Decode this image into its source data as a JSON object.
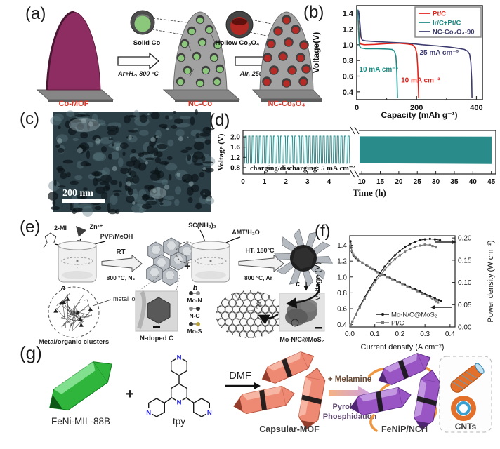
{
  "panels": {
    "a": {
      "label": "(a)",
      "stages": [
        "Co-MOF",
        "NC-Co",
        "NC-Co₃O₄"
      ],
      "arrows": [
        "Ar+H₂, 800 °C",
        "Air, 250 °C"
      ],
      "insets": [
        "Solid Co",
        "Hollow Co₃O₄"
      ]
    },
    "b": {
      "label": "(b)"
    },
    "c": {
      "label": "(c)",
      "scale_bar": "200 nm"
    },
    "d": {
      "label": "(d)"
    },
    "e": {
      "label": "(e)",
      "reagent_mi": "2-MI",
      "reagent_zn": "Zn²⁺",
      "reagent_pvp": "PVP/MeOH",
      "beaker_a": "a",
      "step1_top": "RT",
      "step1_bottom": "800 °C, N₂",
      "plus": "+",
      "reagent_thiourea": "SC(NH₂)₂",
      "reagent_amt": "AMT/H₂O",
      "beaker_b": "b",
      "step2_top": "HT, 180°C",
      "step2_bottom": "800 °C, Ar",
      "product_c": "c",
      "metal_ion": "metal ion",
      "clusters": "Metal/organic clusters",
      "ndoped": "N-doped C",
      "bonds": [
        "Mo-N",
        "N-C",
        "Mo-S"
      ],
      "final": "Mo-N/C@MoS₂"
    },
    "f": {
      "label": "(f)"
    },
    "g": {
      "label": "(g)",
      "mof": "FeNi-MIL-88B",
      "plus": "+",
      "ligand": "tpy",
      "n_atom": "N",
      "solvent_arrow": "DMF",
      "capsular": "Capsular-MOF",
      "melamine": "+ Melamine",
      "pyro": "Pyrolysis",
      "phos": "Phosphidation",
      "product": "FeNiP/NCH",
      "cnts": "CNTs"
    }
  },
  "colors": {
    "co_mof_purple": "#8e2d62",
    "carbon_gray": "#a2a2a2",
    "solid_co_green": "#8cc87c",
    "co3o4_red": "#b62b26",
    "cycling_teal": "#2a8b8b",
    "mil_green": "#2fb53c",
    "capsular_salmon": "#ee8a74",
    "fenip_purple": "#9a55c4",
    "cnt_orange": "#ef9740",
    "nitrogen_blue": "#1a1ae6",
    "stage_label_red": "#d8382a"
  },
  "chart_data": [
    {
      "type": "line",
      "panel": "b",
      "xlabel": "Capacity (mAh g⁻¹)",
      "ylabel": "Voltage(V)",
      "xlim": [
        0,
        420
      ],
      "ylim": [
        0.3,
        1.5
      ],
      "xticks": [
        0,
        200,
        400
      ],
      "xticks_minor": [
        100,
        300
      ],
      "yticks": [
        0.4,
        0.6,
        0.8,
        1.0,
        1.2,
        1.4
      ],
      "legend_position": "top-right",
      "grid": false,
      "series": [
        {
          "name": "Pt/C",
          "color": "#e2231a",
          "points": [
            [
              6,
              1.31
            ],
            [
              7,
              1.18
            ],
            [
              9,
              1.05
            ],
            [
              12,
              1.01
            ],
            [
              25,
              1.0
            ],
            [
              60,
              1.005
            ],
            [
              100,
              1.015
            ],
            [
              140,
              1.02
            ],
            [
              170,
              1.01
            ],
            [
              186,
              1.0
            ],
            [
              196,
              0.96
            ],
            [
              201,
              0.88
            ],
            [
              204,
              0.7
            ],
            [
              206,
              0.45
            ],
            [
              207,
              0.32
            ]
          ]
        },
        {
          "name": "Ir/C+Pt/C",
          "color": "#1b8a82",
          "points": [
            [
              4,
              1.45
            ],
            [
              5,
              1.3
            ],
            [
              7,
              1.1
            ],
            [
              9,
              0.99
            ],
            [
              13,
              0.96
            ],
            [
              30,
              0.95
            ],
            [
              70,
              0.95
            ],
            [
              105,
              0.945
            ],
            [
              118,
              0.94
            ],
            [
              126,
              0.92
            ],
            [
              131,
              0.85
            ],
            [
              134,
              0.65
            ],
            [
              136,
              0.32
            ]
          ]
        },
        {
          "name": "NC-Co₃O₄-90",
          "color": "#3c3b6e",
          "points": [
            [
              6,
              1.44
            ],
            [
              8,
              1.38
            ],
            [
              11,
              1.25
            ],
            [
              14,
              1.1
            ],
            [
              18,
              1.06
            ],
            [
              30,
              1.05
            ],
            [
              70,
              1.04
            ],
            [
              120,
              1.03
            ],
            [
              170,
              1.02
            ],
            [
              220,
              1.0
            ],
            [
              270,
              0.985
            ],
            [
              310,
              0.97
            ],
            [
              340,
              0.955
            ],
            [
              360,
              0.94
            ],
            [
              370,
              0.92
            ],
            [
              377,
              0.88
            ],
            [
              381,
              0.78
            ],
            [
              384,
              0.55
            ],
            [
              385,
              0.32
            ]
          ]
        }
      ],
      "annotations": [
        {
          "text": "25 mA cm⁻³",
          "color": "#3c3b6e",
          "x": 210,
          "y": 0.875
        },
        {
          "text": "10 mA cm⁻³",
          "color": "#1b8a82",
          "x": 8,
          "y": 0.66
        },
        {
          "text": "10 mA cm⁻³",
          "color": "#e2231a",
          "x": 148,
          "y": 0.52
        }
      ]
    },
    {
      "type": "line",
      "panel": "d",
      "xlabel": "Time (h)",
      "ylabel": "Voltage (V)",
      "ylim": [
        0.55,
        2.25
      ],
      "yticks": [
        0.8,
        1.2,
        1.6,
        2.0
      ],
      "axis_break": true,
      "segment1": {
        "xlim": [
          0,
          5.1
        ],
        "xticks": [
          0,
          1,
          2,
          3,
          4
        ]
      },
      "segment2": {
        "xlim": [
          9.4,
          46.2
        ],
        "xticks": [
          10,
          15,
          20,
          25,
          30,
          35,
          40,
          45
        ]
      },
      "cycling": {
        "v_low": 0.97,
        "v_high": 2.03,
        "cycles_shown": 30,
        "t_start": 0.05,
        "t_end": 5.0,
        "dense_from": 10,
        "dense_to": 45.7
      },
      "annotation": "charging/discharging: 5 mA cm⁻²",
      "color": "#2a8b8b"
    },
    {
      "type": "line",
      "panel": "f",
      "xlabel": "Current density (A cm⁻²)",
      "ylabel_left": "Voltage (V)",
      "ylabel_right": "Power density (W cm⁻²)",
      "xlim": [
        0,
        0.42
      ],
      "xticks": [
        0.0,
        0.1,
        0.2,
        0.3,
        0.4
      ],
      "ylim_left": [
        0.37,
        1.52
      ],
      "yticks_left": [
        0.4,
        0.6,
        0.8,
        1.0,
        1.2,
        1.4
      ],
      "ylim_right": [
        0,
        0.205
      ],
      "yticks_right": [
        0.0,
        0.05,
        0.1,
        0.15,
        0.2
      ],
      "legend": [
        "Mo-N/C@MoS₂",
        "Pt/C"
      ],
      "series": [
        {
          "name": "Mo-N/C@MoS₂",
          "color": "#1a1a1a",
          "marker": "circle",
          "axis": "left",
          "points": [
            [
              0.003,
              1.45
            ],
            [
              0.006,
              1.37
            ],
            [
              0.01,
              1.31
            ],
            [
              0.016,
              1.27
            ],
            [
              0.024,
              1.24
            ],
            [
              0.034,
              1.21
            ],
            [
              0.05,
              1.18
            ],
            [
              0.066,
              1.15
            ],
            [
              0.082,
              1.12
            ],
            [
              0.1,
              1.09
            ],
            [
              0.12,
              1.05
            ],
            [
              0.14,
              1.02
            ],
            [
              0.16,
              0.99
            ],
            [
              0.18,
              0.96
            ],
            [
              0.2,
              0.93
            ],
            [
              0.22,
              0.9
            ],
            [
              0.24,
              0.87
            ],
            [
              0.26,
              0.85
            ],
            [
              0.28,
              0.82
            ],
            [
              0.3,
              0.79
            ],
            [
              0.32,
              0.76
            ],
            [
              0.34,
              0.73
            ],
            [
              0.355,
              0.71
            ],
            [
              0.365,
              0.7
            ]
          ]
        },
        {
          "name": "Pt/C",
          "color": "#7a7a7a",
          "marker": "square",
          "axis": "left",
          "points": [
            [
              0.003,
              1.42
            ],
            [
              0.008,
              1.33
            ],
            [
              0.014,
              1.28
            ],
            [
              0.022,
              1.25
            ],
            [
              0.032,
              1.22
            ],
            [
              0.05,
              1.18
            ],
            [
              0.07,
              1.14
            ],
            [
              0.09,
              1.1
            ],
            [
              0.11,
              1.06
            ],
            [
              0.13,
              1.03
            ],
            [
              0.15,
              1.0
            ],
            [
              0.17,
              0.97
            ],
            [
              0.19,
              0.94
            ],
            [
              0.21,
              0.91
            ],
            [
              0.23,
              0.88
            ],
            [
              0.25,
              0.85
            ],
            [
              0.27,
              0.82
            ],
            [
              0.29,
              0.79
            ],
            [
              0.31,
              0.76
            ],
            [
              0.33,
              0.72
            ],
            [
              0.345,
              0.69
            ],
            [
              0.352,
              0.68
            ]
          ]
        },
        {
          "name": "Mo-N/C@MoS₂ power",
          "color": "#1a1a1a",
          "marker": "circle",
          "axis": "right",
          "points": [
            [
              0.003,
              0.004
            ],
            [
              0.01,
              0.012
            ],
            [
              0.024,
              0.028
            ],
            [
              0.04,
              0.046
            ],
            [
              0.06,
              0.067
            ],
            [
              0.08,
              0.087
            ],
            [
              0.1,
              0.105
            ],
            [
              0.12,
              0.121
            ],
            [
              0.14,
              0.136
            ],
            [
              0.16,
              0.149
            ],
            [
              0.18,
              0.161
            ],
            [
              0.2,
              0.171
            ],
            [
              0.22,
              0.179
            ],
            [
              0.24,
              0.186
            ],
            [
              0.26,
              0.191
            ],
            [
              0.28,
              0.195
            ],
            [
              0.3,
              0.197
            ],
            [
              0.32,
              0.198
            ],
            [
              0.34,
              0.197
            ],
            [
              0.36,
              0.195
            ]
          ]
        },
        {
          "name": "Pt/C power",
          "color": "#7a7a7a",
          "marker": "square",
          "axis": "right",
          "points": [
            [
              0.003,
              0.004
            ],
            [
              0.01,
              0.012
            ],
            [
              0.024,
              0.027
            ],
            [
              0.04,
              0.044
            ],
            [
              0.06,
              0.064
            ],
            [
              0.08,
              0.083
            ],
            [
              0.1,
              0.1
            ],
            [
              0.12,
              0.115
            ],
            [
              0.14,
              0.129
            ],
            [
              0.16,
              0.141
            ],
            [
              0.18,
              0.152
            ],
            [
              0.2,
              0.161
            ],
            [
              0.22,
              0.169
            ],
            [
              0.24,
              0.175
            ],
            [
              0.26,
              0.18
            ],
            [
              0.28,
              0.183
            ],
            [
              0.3,
              0.185
            ],
            [
              0.32,
              0.184
            ],
            [
              0.33,
              0.182
            ],
            [
              0.345,
              0.179
            ]
          ]
        }
      ]
    }
  ]
}
